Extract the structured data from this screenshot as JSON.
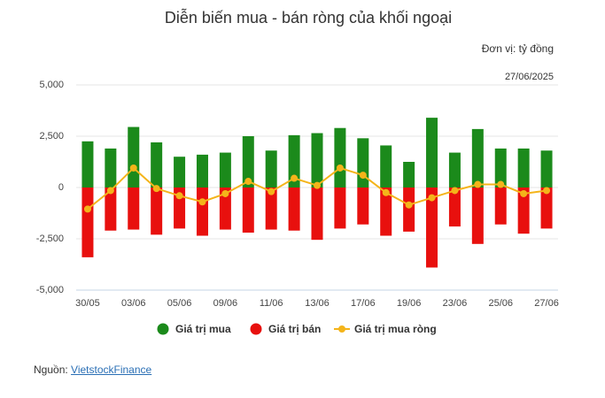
{
  "chart_data": {
    "type": "bar",
    "title": "Diễn biến mua - bán ròng của khối ngoại",
    "unit": "Đơn vị: tỷ đồng",
    "date": "27/06/2025",
    "categories": [
      "30/05",
      null,
      "03/06",
      null,
      "05/06",
      null,
      "09/06",
      null,
      "11/06",
      null,
      "13/06",
      null,
      "17/06",
      null,
      "19/06",
      null,
      "23/06",
      null,
      "25/06",
      null,
      "27/06"
    ],
    "series": [
      {
        "name": "Giá trị mua",
        "type": "bar",
        "color": "#1b8a1b",
        "values": [
          2250,
          1900,
          2950,
          2200,
          1500,
          1600,
          1700,
          2500,
          1800,
          2550,
          2650,
          2900,
          2400,
          2050,
          1250,
          3400,
          1700,
          2850,
          1900,
          1900,
          1800
        ]
      },
      {
        "name": "Giá trị bán",
        "type": "bar",
        "color": "#e8100e",
        "values": [
          -3400,
          -2100,
          -2050,
          -2300,
          -2000,
          -2350,
          -2050,
          -2200,
          -2050,
          -2100,
          -2550,
          -2000,
          -1800,
          -2350,
          -2150,
          -3900,
          -1900,
          -2750,
          -1800,
          -2250,
          -2000
        ]
      },
      {
        "name": "Giá trị mua ròng",
        "type": "line",
        "color": "#f4b41a",
        "values": [
          -1050,
          -150,
          950,
          -50,
          -400,
          -700,
          -300,
          300,
          -200,
          450,
          100,
          950,
          600,
          -250,
          -850,
          -500,
          -150,
          150,
          150,
          -300,
          -150
        ]
      }
    ],
    "ylim": [
      -5000,
      5000
    ],
    "yticks": [
      {
        "value": -5000,
        "label": "-5,000"
      },
      {
        "value": -2500,
        "label": "-2,500"
      },
      0,
      {
        "value": 2500,
        "label": "2,500"
      },
      {
        "value": 5000,
        "label": "5,000"
      }
    ],
    "grid": true,
    "legend": "bottom"
  },
  "source": {
    "label": "Nguồn:",
    "link": "VietstockFinance"
  }
}
